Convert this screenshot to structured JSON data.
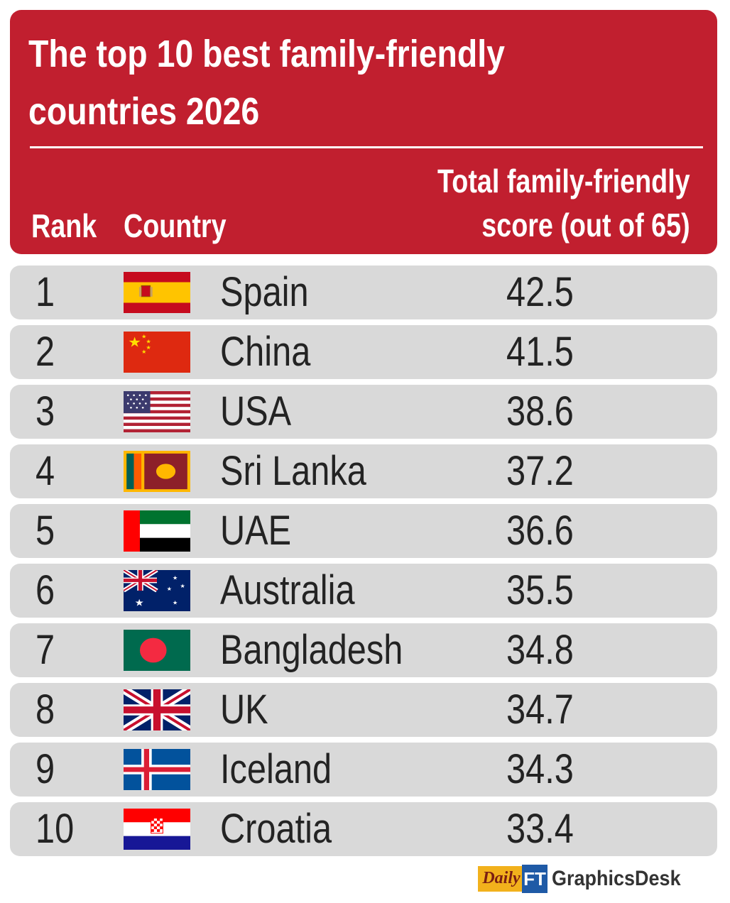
{
  "title_line1": "The top 10 best family-friendly",
  "title_line2": "countries 2026",
  "columns": {
    "rank": "Rank",
    "country": "Country",
    "score_line1": "Total family-friendly",
    "score_line2": "score (out of 65)"
  },
  "colors": {
    "header_bg": "#c11f2f",
    "row_bg": "#d9d9d9",
    "text": "#232323"
  },
  "chart_data": {
    "type": "table",
    "title": "The top 10 best family-friendly countries 2026",
    "columns": [
      "Rank",
      "Country",
      "Total family-friendly score (out of 65)"
    ],
    "rows": [
      {
        "rank": "1",
        "country": "Spain",
        "score": "42.5",
        "flag": "spain-flag-icon"
      },
      {
        "rank": "2",
        "country": "China",
        "score": "41.5",
        "flag": "china-flag-icon"
      },
      {
        "rank": "3",
        "country": "USA",
        "score": "38.6",
        "flag": "usa-flag-icon"
      },
      {
        "rank": "4",
        "country": "Sri Lanka",
        "score": "37.2",
        "flag": "sri-lanka-flag-icon"
      },
      {
        "rank": "5",
        "country": "UAE",
        "score": "36.6",
        "flag": "uae-flag-icon"
      },
      {
        "rank": "6",
        "country": "Australia",
        "score": "35.5",
        "flag": "australia-flag-icon"
      },
      {
        "rank": "7",
        "country": "Bangladesh",
        "score": "34.8",
        "flag": "bangladesh-flag-icon"
      },
      {
        "rank": "8",
        "country": "UK",
        "score": "34.7",
        "flag": "uk-flag-icon"
      },
      {
        "rank": "9",
        "country": "Iceland",
        "score": "34.3",
        "flag": "iceland-flag-icon"
      },
      {
        "rank": "10",
        "country": "Croatia",
        "score": "33.4",
        "flag": "croatia-flag-icon"
      }
    ]
  },
  "logo": {
    "daily": "Daily",
    "ft": "FT",
    "desk": "GraphicsDesk"
  }
}
